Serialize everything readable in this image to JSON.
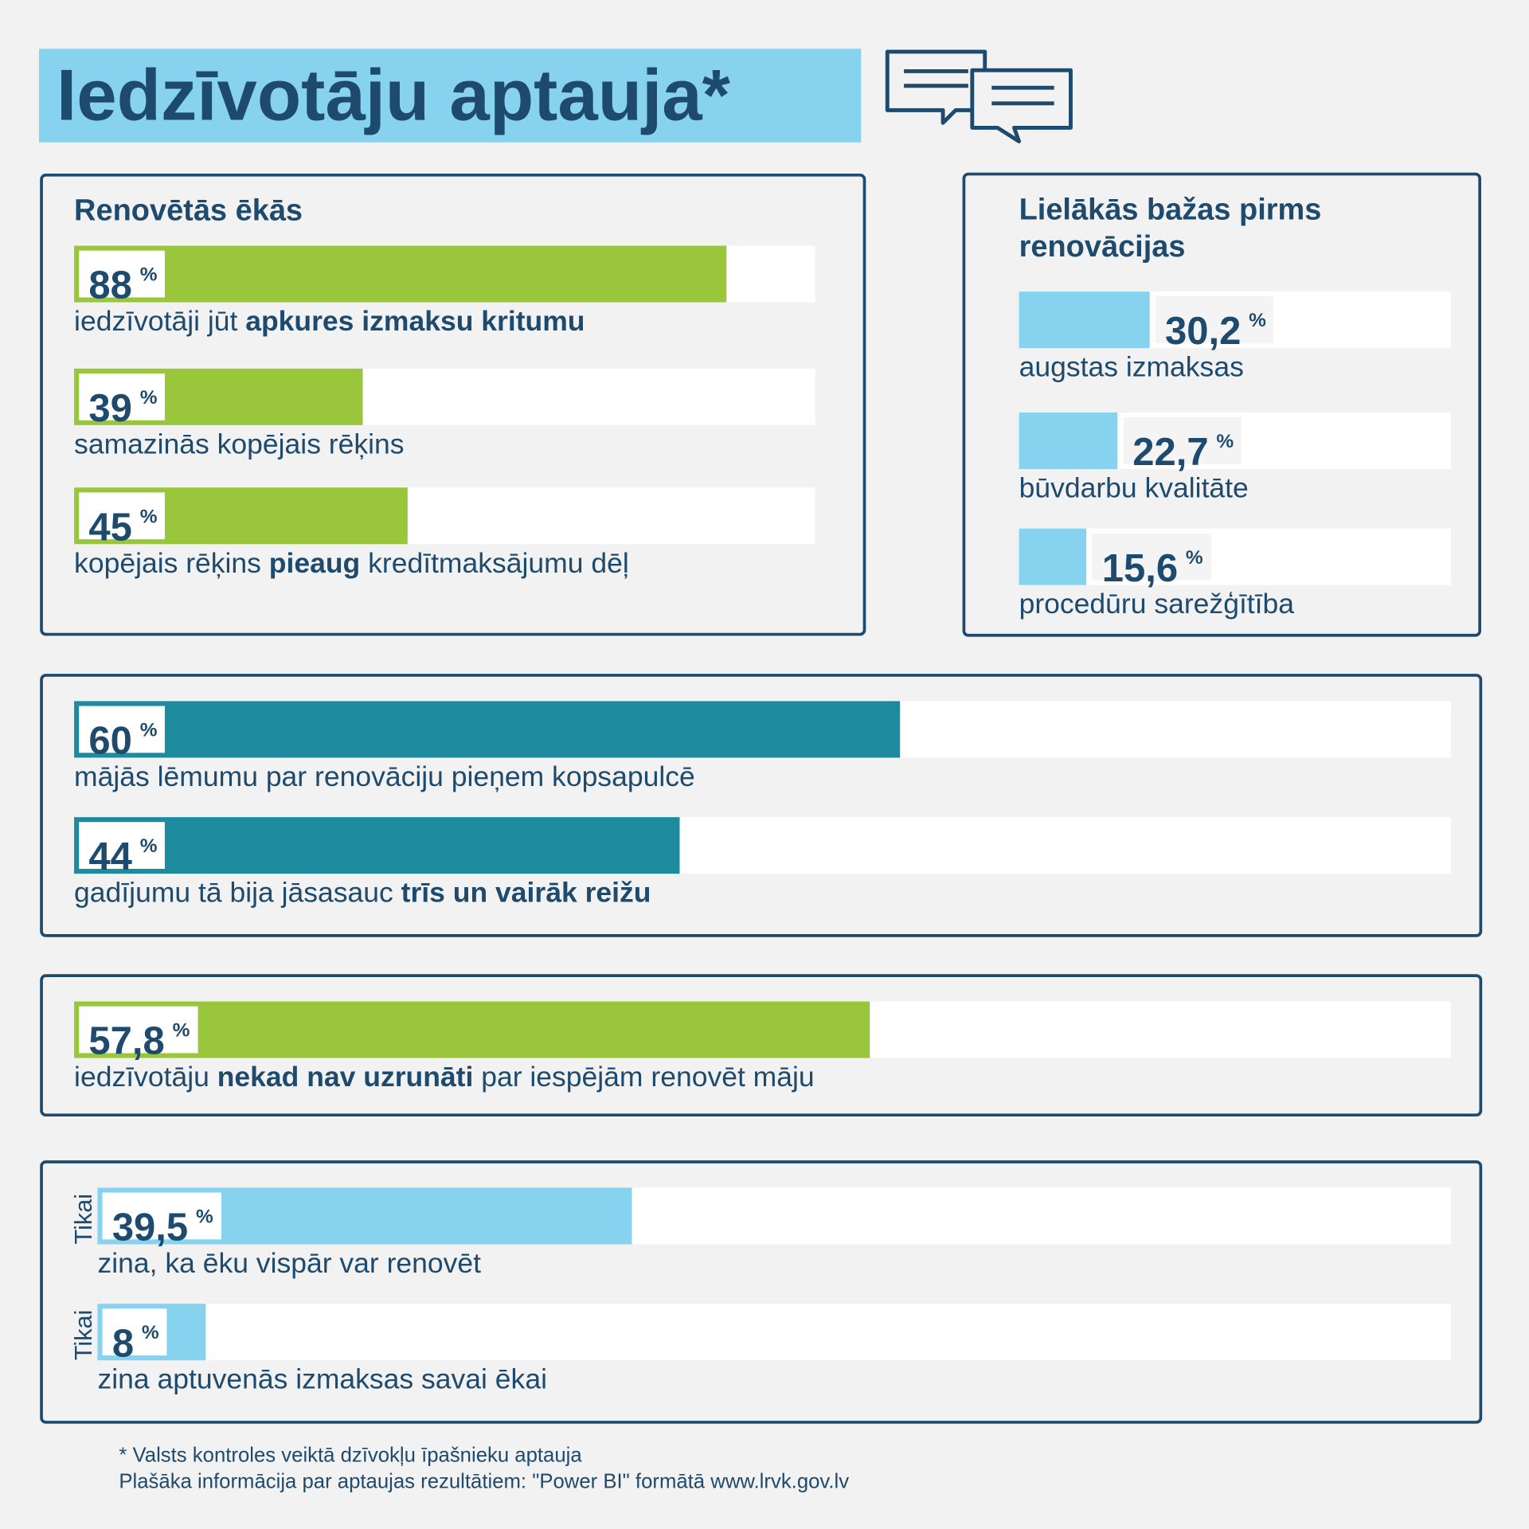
{
  "title": "Iedzīvotāju aptauja*",
  "chart_data": [
    {
      "type": "bar",
      "orientation": "horizontal",
      "title": "Renovētās ēkās",
      "unit": "%",
      "xlim": [
        0,
        100
      ],
      "color": "#9ac63b",
      "values": [
        88,
        39,
        45
      ],
      "categories": [
        [
          {
            "text": "iedzīvotāji jūt "
          },
          {
            "text": "apkures izmaksu kritumu",
            "bold": true
          }
        ],
        [
          {
            "text": "samazinās kopējais rēķins"
          }
        ],
        [
          {
            "text": "kopējais rēķins "
          },
          {
            "text": "pieaug",
            "bold": true
          },
          {
            "text": " kredītmaksājumu dēļ"
          }
        ]
      ]
    },
    {
      "type": "bar",
      "orientation": "horizontal",
      "title": "Lielākās bažas pirms renovācijas",
      "unit": "%",
      "xlim": [
        0,
        100
      ],
      "color": "#87d2ef",
      "values": [
        30.2,
        22.7,
        15.6
      ],
      "value_labels": [
        "30,2",
        "22,7",
        "15,6"
      ],
      "categories": [
        [
          {
            "text": "augstas izmaksas"
          }
        ],
        [
          {
            "text": "būvdarbu kvalitāte"
          }
        ],
        [
          {
            "text": "procedūru sarežģītība"
          }
        ]
      ]
    },
    {
      "type": "bar",
      "orientation": "horizontal",
      "unit": "%",
      "xlim": [
        0,
        100
      ],
      "color": "#1e8a9e",
      "values": [
        60,
        44
      ],
      "categories": [
        [
          {
            "text": "mājās lēmumu par renovāciju pieņem kopsapulcē"
          }
        ],
        [
          {
            "text": "gadījumu tā bija jāsasauc "
          },
          {
            "text": "trīs un vairāk reižu",
            "bold": true
          }
        ]
      ]
    },
    {
      "type": "bar",
      "orientation": "horizontal",
      "unit": "%",
      "xlim": [
        0,
        100
      ],
      "color": "#9ac63b",
      "values": [
        57.8
      ],
      "value_labels": [
        "57,8"
      ],
      "categories": [
        [
          {
            "text": "iedzīvotāju "
          },
          {
            "text": "nekad nav uzrunāti",
            "bold": true
          },
          {
            "text": " par iespējām renovēt māju"
          }
        ]
      ]
    },
    {
      "type": "bar",
      "orientation": "horizontal",
      "unit": "%",
      "xlim": [
        0,
        100
      ],
      "color": "#87d2ef",
      "values": [
        39.5,
        8
      ],
      "value_labels": [
        "39,5",
        "8"
      ],
      "side_labels": [
        "Tikai",
        "Tikai"
      ],
      "categories": [
        [
          {
            "text": "zina, ka ēku vispār var renovēt"
          }
        ],
        [
          {
            "text": "zina aptuvenās izmaksas savai ēkai"
          }
        ]
      ]
    }
  ],
  "footnotes": [
    "* Valsts kontroles veiktā dzīvokļu īpašnieku aptauja",
    "Plašāka informācija par aptaujas rezultātiem: \"Power BI\" formātā www.lrvk.gov.lv"
  ]
}
